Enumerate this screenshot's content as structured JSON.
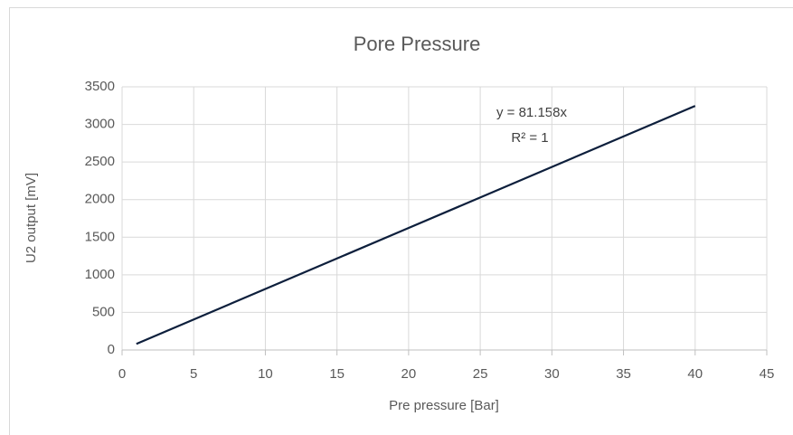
{
  "chart_data": {
    "type": "line",
    "title": "Pore Pressure",
    "x_label": "Pre pressure [Bar]",
    "y_label": "U2 output [mV]",
    "x": [
      1,
      40
    ],
    "series": [
      {
        "name": "U2 output",
        "color": "#0d1f3c",
        "values": [
          81,
          3246
        ]
      }
    ],
    "annotations": [
      "y = 81.158x",
      "R² = 1"
    ],
    "xlim": [
      0,
      45
    ],
    "xticks": [
      0,
      5,
      10,
      15,
      20,
      25,
      30,
      35,
      40,
      45
    ],
    "ylim": [
      0,
      3500
    ],
    "yticks": [
      0,
      500,
      1000,
      1500,
      2000,
      2500,
      3000,
      3500
    ],
    "grid": true
  }
}
